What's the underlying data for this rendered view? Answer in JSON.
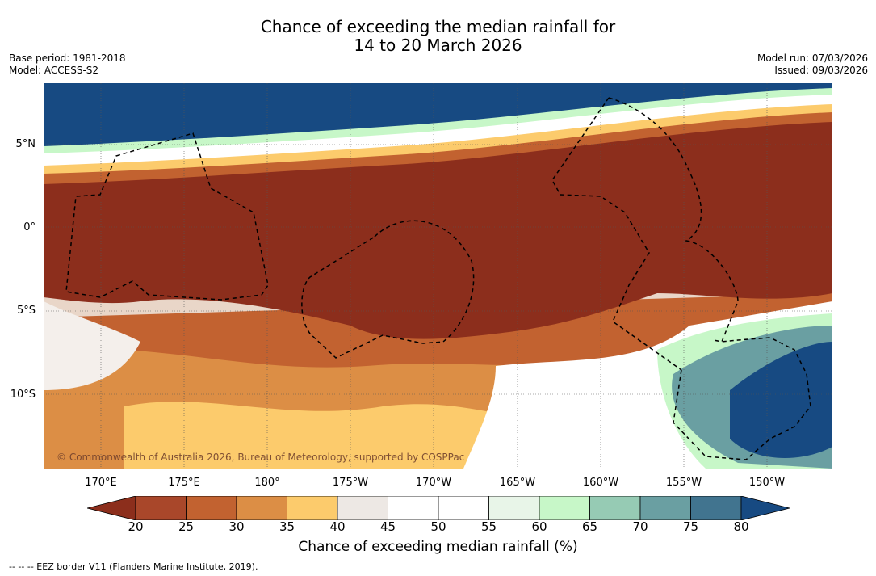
{
  "header": {
    "title_line1": "Chance of exceeding the median rainfall for",
    "title_line2": "14 to 20 March 2026",
    "base_period": "Base period: 1981-2018",
    "model": "Model: ACCESS-S2",
    "model_run": "Model run: 07/03/2026",
    "issued": "Issued: 09/03/2026"
  },
  "map": {
    "lat_labels": [
      "5°N",
      "0°",
      "5°S",
      "10°S"
    ],
    "lon_labels": [
      "170°E",
      "175°E",
      "180°",
      "175°W",
      "170°W",
      "165°W",
      "160°W",
      "155°W",
      "150°W"
    ],
    "copyright": "© Commonwealth of Australia 2026, Bureau of Meteorology, supported by COSPPac"
  },
  "colorbar": {
    "ticks": [
      "20",
      "25",
      "30",
      "35",
      "40",
      "45",
      "50",
      "55",
      "60",
      "65",
      "70",
      "75",
      "80"
    ],
    "colors": [
      "#8c2e1c",
      "#a9472a",
      "#c26230",
      "#dc8e45",
      "#fccb6c",
      "#ede8e4",
      "#ffffff",
      "#ffffff",
      "#e8f5e8",
      "#c7f7c8",
      "#96cbb4",
      "#6a9fa2",
      "#41748f",
      "#174a82"
    ],
    "title": "Chance of exceeding median rainfall (%)"
  },
  "footer": {
    "legend": "--  --  -- EEZ border V11 (Flanders Marine Institute, 2019)."
  }
}
